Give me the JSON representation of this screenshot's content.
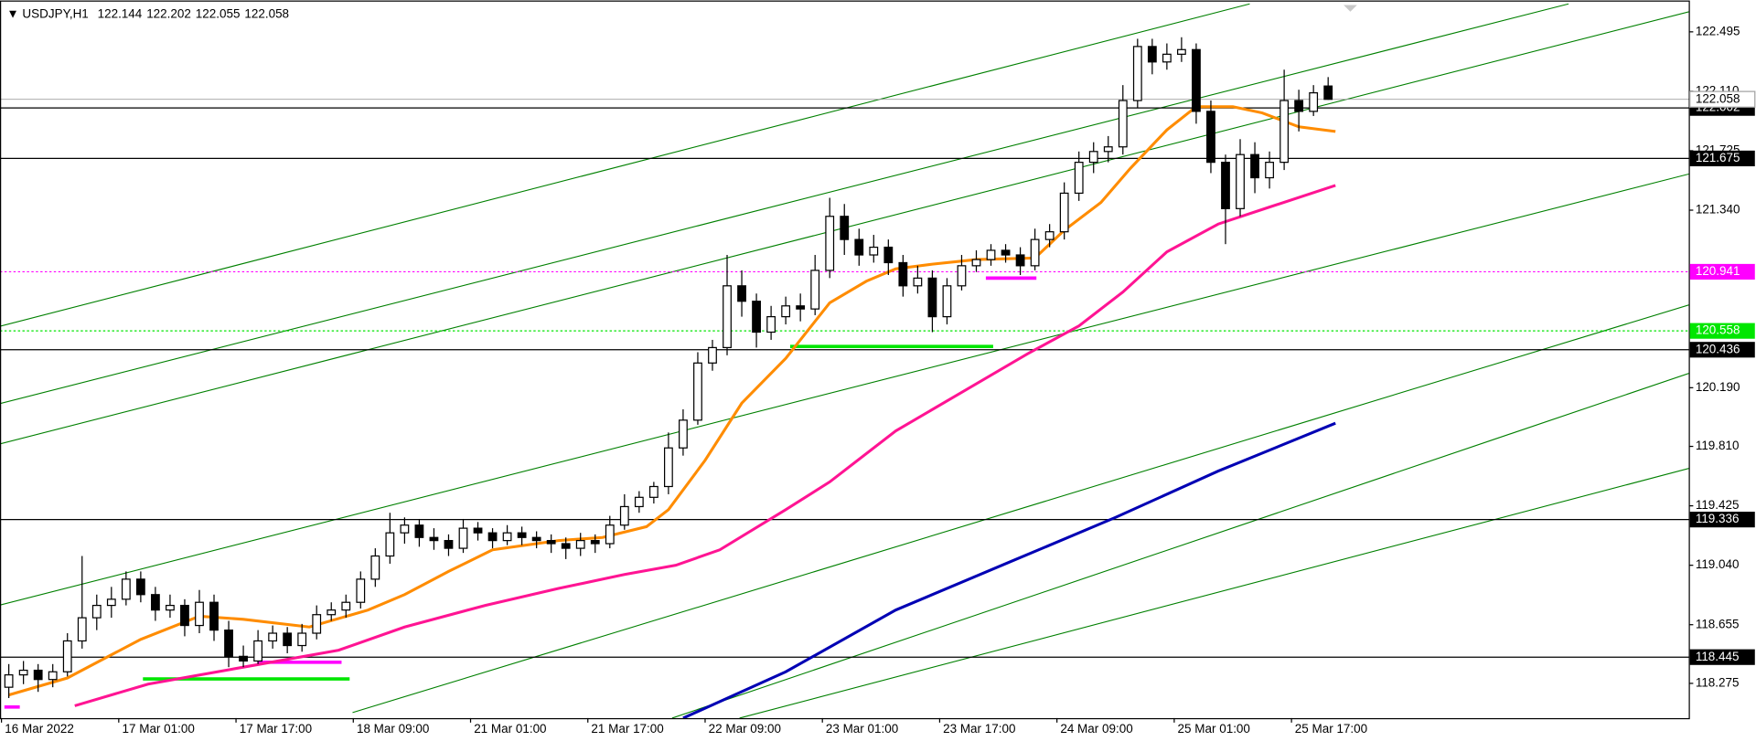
{
  "chart_data": {
    "type": "candlestick",
    "symbol": "USDJPY,H1",
    "xlim": [
      -1.2,
      229.2
    ],
    "ylim": [
      118.05,
      122.698
    ],
    "xticks": [
      {
        "value": -1,
        "label": "16 Mar 2022"
      },
      {
        "value": 15,
        "label": "17 Mar 01:00"
      },
      {
        "value": 31,
        "label": "17 Mar 17:00"
      },
      {
        "value": 47,
        "label": "18 Mar 09:00"
      },
      {
        "value": 63,
        "label": "21 Mar 01:00"
      },
      {
        "value": 79,
        "label": "21 Mar 17:00"
      },
      {
        "value": 95,
        "label": "22 Mar 09:00"
      },
      {
        "value": 111,
        "label": "23 Mar 01:00"
      },
      {
        "value": 127,
        "label": "23 Mar 17:00"
      },
      {
        "value": 143,
        "label": "24 Mar 09:00"
      },
      {
        "value": 159,
        "label": "25 Mar 01:00"
      },
      {
        "value": 175,
        "label": "25 Mar 17:00"
      }
    ],
    "yticks": [
      122.495,
      {
        "value": 122.11,
        "label": "122.110"
      },
      121.725,
      {
        "value": 121.34,
        "label": "121.340"
      },
      {
        "value": 120.19,
        "label": "120.190"
      },
      {
        "value": 119.81,
        "label": "119.810"
      },
      119.425,
      {
        "value": 119.04,
        "label": "119.040"
      },
      118.655,
      118.275
    ],
    "candles": [
      [
        0,
        118.25,
        118.4,
        118.18,
        118.33
      ],
      [
        2,
        118.33,
        118.42,
        118.27,
        118.36
      ],
      [
        4,
        118.36,
        118.4,
        118.22,
        118.3
      ],
      [
        6,
        118.3,
        118.4,
        118.25,
        118.35
      ],
      [
        8,
        118.35,
        118.6,
        118.32,
        118.55
      ],
      [
        10,
        118.55,
        119.1,
        118.5,
        118.7
      ],
      [
        12,
        118.7,
        118.85,
        118.62,
        118.78
      ],
      [
        14,
        118.78,
        118.9,
        118.7,
        118.82
      ],
      [
        16,
        118.82,
        119.0,
        118.78,
        118.95
      ],
      [
        18,
        118.95,
        119.0,
        118.8,
        118.85
      ],
      [
        20,
        118.85,
        118.9,
        118.68,
        118.75
      ],
      [
        22,
        118.75,
        118.85,
        118.7,
        118.78
      ],
      [
        24,
        118.78,
        118.82,
        118.58,
        118.65
      ],
      [
        26,
        118.65,
        118.88,
        118.6,
        118.8
      ],
      [
        28,
        118.8,
        118.85,
        118.55,
        118.62
      ],
      [
        30,
        118.62,
        118.68,
        118.38,
        118.45
      ],
      [
        32,
        118.45,
        118.52,
        118.38,
        118.42
      ],
      [
        34,
        118.42,
        118.62,
        118.4,
        118.55
      ],
      [
        36,
        118.55,
        118.65,
        118.5,
        118.6
      ],
      [
        38,
        118.6,
        118.64,
        118.47,
        118.52
      ],
      [
        40,
        118.52,
        118.66,
        118.48,
        118.6
      ],
      [
        42,
        118.6,
        118.78,
        118.56,
        118.72
      ],
      [
        44,
        118.72,
        118.8,
        118.68,
        118.75
      ],
      [
        46,
        118.75,
        118.85,
        118.7,
        118.8
      ],
      [
        48,
        118.8,
        119.0,
        118.76,
        118.95
      ],
      [
        50,
        118.95,
        119.15,
        118.9,
        119.1
      ],
      [
        52,
        119.1,
        119.38,
        119.05,
        119.25
      ],
      [
        54,
        119.25,
        119.35,
        119.18,
        119.3
      ],
      [
        56,
        119.3,
        119.34,
        119.16,
        119.22
      ],
      [
        58,
        119.22,
        119.28,
        119.14,
        119.2
      ],
      [
        60,
        119.2,
        119.24,
        119.1,
        119.15
      ],
      [
        62,
        119.15,
        119.34,
        119.12,
        119.28
      ],
      [
        64,
        119.28,
        119.32,
        119.2,
        119.25
      ],
      [
        66,
        119.25,
        119.28,
        119.15,
        119.2
      ],
      [
        68,
        119.2,
        119.3,
        119.17,
        119.25
      ],
      [
        70,
        119.25,
        119.29,
        119.17,
        119.22
      ],
      [
        72,
        119.22,
        119.26,
        119.15,
        119.2
      ],
      [
        74,
        119.2,
        119.24,
        119.12,
        119.18
      ],
      [
        76,
        119.18,
        119.22,
        119.08,
        119.15
      ],
      [
        78,
        119.15,
        119.25,
        119.1,
        119.2
      ],
      [
        80,
        119.2,
        119.24,
        119.12,
        119.18
      ],
      [
        82,
        119.18,
        119.36,
        119.15,
        119.3
      ],
      [
        84,
        119.3,
        119.5,
        119.27,
        119.42
      ],
      [
        86,
        119.42,
        119.52,
        119.38,
        119.48
      ],
      [
        88,
        119.48,
        119.58,
        119.44,
        119.55
      ],
      [
        90,
        119.55,
        119.9,
        119.5,
        119.8
      ],
      [
        92,
        119.8,
        120.05,
        119.75,
        119.98
      ],
      [
        94,
        119.98,
        120.42,
        119.95,
        120.35
      ],
      [
        96,
        120.35,
        120.5,
        120.3,
        120.45
      ],
      [
        98,
        120.45,
        121.05,
        120.4,
        120.85
      ],
      [
        100,
        120.85,
        120.95,
        120.65,
        120.75
      ],
      [
        102,
        120.75,
        120.8,
        120.45,
        120.55
      ],
      [
        104,
        120.55,
        120.72,
        120.5,
        120.65
      ],
      [
        106,
        120.65,
        120.78,
        120.6,
        120.72
      ],
      [
        108,
        120.72,
        120.8,
        120.62,
        120.7
      ],
      [
        110,
        120.7,
        121.05,
        120.66,
        120.95
      ],
      [
        112,
        120.95,
        121.42,
        120.9,
        121.3
      ],
      [
        114,
        121.3,
        121.38,
        121.05,
        121.15
      ],
      [
        116,
        121.15,
        121.22,
        120.98,
        121.05
      ],
      [
        118,
        121.05,
        121.18,
        121.0,
        121.1
      ],
      [
        120,
        121.1,
        121.15,
        120.92,
        121.0
      ],
      [
        122,
        121.0,
        121.05,
        120.78,
        120.85
      ],
      [
        124,
        120.85,
        120.98,
        120.8,
        120.9
      ],
      [
        126,
        120.9,
        120.95,
        120.55,
        120.65
      ],
      [
        128,
        120.65,
        120.9,
        120.6,
        120.85
      ],
      [
        130,
        120.85,
        121.05,
        120.82,
        120.98
      ],
      [
        132,
        120.98,
        121.08,
        120.94,
        121.02
      ],
      [
        134,
        121.02,
        121.12,
        120.98,
        121.08
      ],
      [
        136,
        121.08,
        121.12,
        121.0,
        121.05
      ],
      [
        138,
        121.05,
        121.1,
        120.92,
        120.98
      ],
      [
        140,
        120.98,
        121.22,
        120.95,
        121.15
      ],
      [
        142,
        121.15,
        121.25,
        121.1,
        121.2
      ],
      [
        144,
        121.2,
        121.52,
        121.15,
        121.45
      ],
      [
        146,
        121.45,
        121.72,
        121.4,
        121.65
      ],
      [
        148,
        121.65,
        121.78,
        121.58,
        121.72
      ],
      [
        150,
        121.72,
        121.82,
        121.65,
        121.75
      ],
      [
        152,
        121.75,
        122.15,
        121.7,
        122.05
      ],
      [
        154,
        122.05,
        122.45,
        122.0,
        122.4
      ],
      [
        156,
        122.4,
        122.45,
        122.22,
        122.3
      ],
      [
        158,
        122.3,
        122.42,
        122.25,
        122.35
      ],
      [
        160,
        122.35,
        122.46,
        122.3,
        122.38
      ],
      [
        162,
        122.38,
        122.42,
        121.9,
        121.98
      ],
      [
        164,
        121.98,
        122.05,
        121.58,
        121.65
      ],
      [
        166,
        121.65,
        121.7,
        121.12,
        121.35
      ],
      [
        168,
        121.35,
        121.8,
        121.3,
        121.7
      ],
      [
        170,
        121.7,
        121.78,
        121.45,
        121.55
      ],
      [
        172,
        121.55,
        121.72,
        121.48,
        121.65
      ],
      [
        174,
        121.65,
        122.25,
        121.6,
        122.05
      ],
      [
        176,
        122.05,
        122.12,
        121.85,
        121.98
      ],
      [
        178,
        121.98,
        122.15,
        121.95,
        122.1
      ],
      [
        180,
        122.144,
        122.202,
        122.055,
        122.058
      ]
    ],
    "series": [
      {
        "color": "#ff8c00",
        "x": [
          0,
          8,
          18,
          26,
          32,
          41,
          49,
          54,
          60,
          66,
          75,
          81,
          87,
          90,
          95,
          100,
          106,
          112,
          117,
          121,
          126,
          132,
          140,
          144,
          149,
          153,
          158,
          162,
          167,
          171,
          176,
          181
        ],
        "values": [
          118.2,
          118.31,
          118.56,
          118.71,
          118.69,
          118.64,
          118.75,
          118.85,
          119.0,
          119.14,
          119.2,
          119.22,
          119.29,
          119.4,
          119.72,
          120.09,
          120.38,
          120.74,
          120.88,
          120.96,
          120.99,
          121.02,
          121.03,
          121.21,
          121.39,
          121.61,
          121.86,
          122.01,
          122.01,
          121.97,
          121.88,
          121.85
        ]
      },
      {
        "color": "#ff1493",
        "x": [
          9,
          19,
          32,
          45,
          54,
          65,
          75,
          84,
          91,
          97,
          106,
          112,
          121,
          130,
          139,
          146,
          152,
          158,
          165,
          172,
          181
        ],
        "values": [
          118.13,
          118.27,
          118.38,
          118.49,
          118.64,
          118.78,
          118.89,
          118.98,
          119.04,
          119.14,
          119.4,
          119.58,
          119.91,
          120.16,
          120.41,
          120.59,
          120.81,
          121.07,
          121.25,
          121.36,
          121.5
        ]
      },
      {
        "color": "#0000b4",
        "x": [
          92,
          106,
          121,
          137,
          151,
          165,
          181
        ],
        "values": [
          118.05,
          118.35,
          118.75,
          119.07,
          119.35,
          119.65,
          119.96
        ]
      }
    ],
    "trendline_color": "#008000",
    "trendlines": [
      {
        "x": [
          -1.2,
          169.3
        ],
        "values": [
          120.588,
          122.676
        ]
      },
      {
        "x": [
          -1.2,
          212.8
        ],
        "values": [
          120.087,
          122.676
        ]
      },
      {
        "x": [
          -1.2,
          229.2
        ],
        "values": [
          119.826,
          122.625
        ]
      },
      {
        "x": [
          -1.2,
          229.2
        ],
        "values": [
          118.782,
          121.574
        ]
      },
      {
        "x": [
          46.9,
          229.2
        ],
        "values": [
          118.086,
          120.726
        ]
      },
      {
        "x": [
          90.5,
          229.2
        ],
        "values": [
          118.05,
          120.283
        ]
      },
      {
        "x": [
          99.7,
          229.2
        ],
        "values": [
          118.05,
          119.667
        ]
      }
    ],
    "levels": [
      {
        "value": 122.002,
        "color": "#000000",
        "style": "solid"
      },
      {
        "value": 121.675,
        "color": "#000000",
        "style": "solid"
      },
      {
        "value": 120.941,
        "color": "#ff00ff",
        "style": "dotted"
      },
      {
        "value": 120.558,
        "color": "#00e600",
        "style": "dotted"
      },
      {
        "value": 120.436,
        "color": "#000000",
        "style": "solid"
      },
      {
        "value": 119.336,
        "color": "#000000",
        "style": "solid"
      },
      {
        "value": 118.445,
        "color": "#000000",
        "style": "solid"
      }
    ],
    "markers": [
      {
        "x": [
          18.3,
          46.5
        ],
        "value": 118.304,
        "color": "#00e600"
      },
      {
        "x": [
          106.6,
          134.3
        ],
        "value": 120.457,
        "color": "#00e600"
      },
      {
        "x": [
          -0.6,
          1.5
        ],
        "value": 118.122,
        "color": "#ff00ff"
      },
      {
        "x": [
          33.9,
          45.4
        ],
        "value": 118.412,
        "color": "#ff00ff"
      },
      {
        "x": [
          133.3,
          140.2
        ],
        "value": 120.9,
        "color": "#ff00ff"
      }
    ]
  }
}
